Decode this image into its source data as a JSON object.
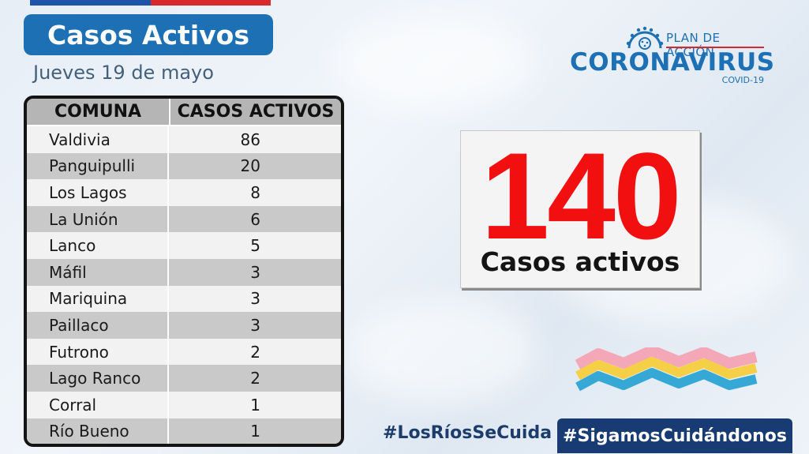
{
  "header": {
    "title": "Casos Activos",
    "date": "Jueves 19 de mayo"
  },
  "table": {
    "headers": [
      "COMUNA",
      "CASOS ACTIVOS"
    ],
    "rows": [
      {
        "comuna": "Valdivia",
        "casos": "86"
      },
      {
        "comuna": "Panguipulli",
        "casos": "20"
      },
      {
        "comuna": "Los Lagos",
        "casos": "8"
      },
      {
        "comuna": "La Unión",
        "casos": "6"
      },
      {
        "comuna": "Lanco",
        "casos": "5"
      },
      {
        "comuna": "Máfil",
        "casos": "3"
      },
      {
        "comuna": "Mariquina",
        "casos": "3"
      },
      {
        "comuna": "Paillaco",
        "casos": "3"
      },
      {
        "comuna": "Futrono",
        "casos": "2"
      },
      {
        "comuna": "Lago Ranco",
        "casos": "2"
      },
      {
        "comuna": "Corral",
        "casos": "1"
      },
      {
        "comuna": "Río Bueno",
        "casos": "1"
      }
    ]
  },
  "logo": {
    "plan": "PLAN DE ACCIÓN",
    "name": "CORONAVIRUS",
    "sub": "COVID-19",
    "icon": "virus-icon"
  },
  "summary": {
    "total": "140",
    "label": "Casos activos"
  },
  "footer": {
    "hashtag_left": "#LosRíosSeCuida",
    "hashtag_right": "#SigamosCuidándonos"
  },
  "colors": {
    "brand_blue": "#1d70b4",
    "accent_red": "#f20f0f",
    "navy": "#173b72"
  }
}
